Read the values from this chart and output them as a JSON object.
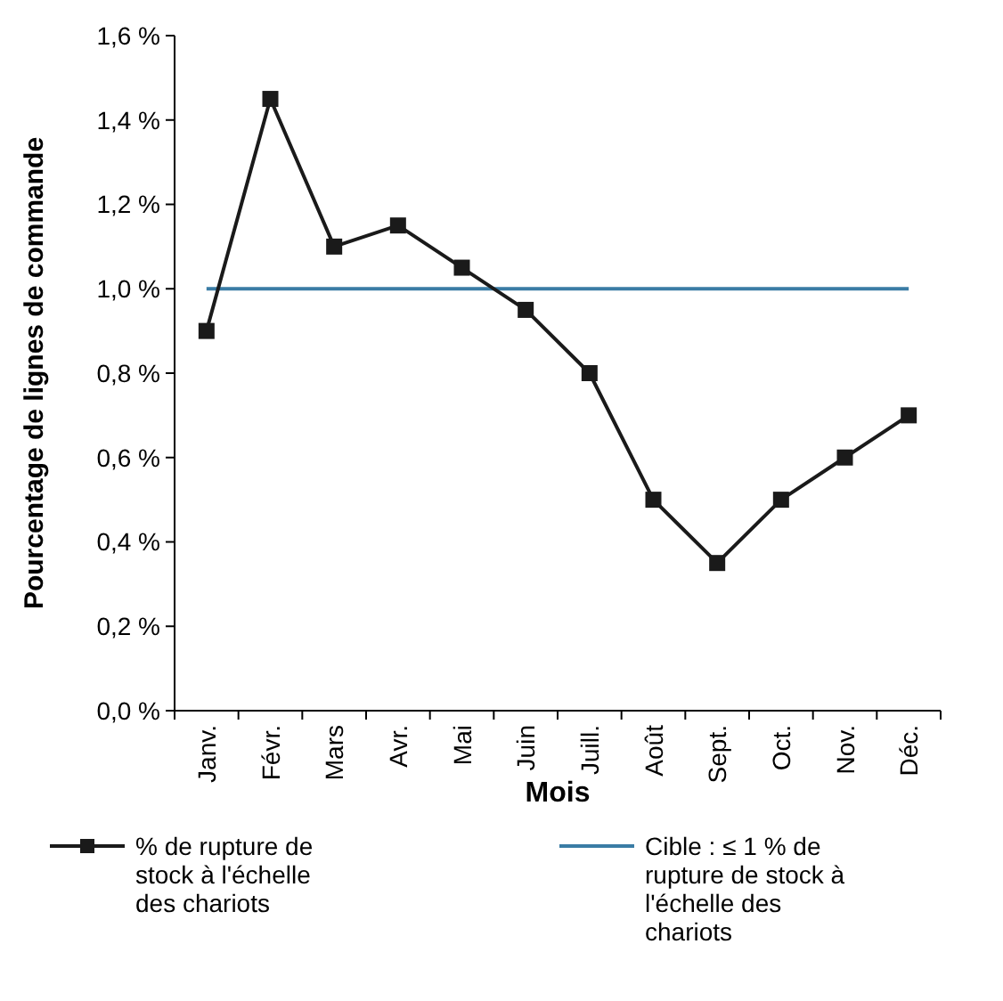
{
  "chart_data": {
    "type": "line",
    "xlabel": "Mois",
    "ylabel": "Pourcentage de lignes de commande",
    "categories": [
      "Janv.",
      "Févr.",
      "Mars",
      "Avr.",
      "Mai",
      "Juin",
      "Juill.",
      "Août",
      "Sept.",
      "Oct.",
      "Nov.",
      "Déc."
    ],
    "series": [
      {
        "name": "% de rupture de stock à l'échelle des chariots",
        "color": "#1a1a1a",
        "marker": "square",
        "values": [
          0.9,
          1.45,
          1.1,
          1.15,
          1.05,
          0.95,
          0.8,
          0.5,
          0.35,
          0.5,
          0.6,
          0.7
        ]
      },
      {
        "name": "Cible : ≤ 1 % de rupture de stock à l'échelle des chariots",
        "color": "#3a7ca5",
        "marker": "none",
        "values": [
          1,
          1,
          1,
          1,
          1,
          1,
          1,
          1,
          1,
          1,
          1,
          1
        ]
      }
    ],
    "ylim": [
      0,
      1.6
    ],
    "yticks": [
      {
        "value": 0,
        "label": "0,0 %"
      },
      {
        "value": 0.2,
        "label": "0,2 %"
      },
      {
        "value": 0.4,
        "label": "0,4 %"
      },
      {
        "value": 0.6,
        "label": "0,6 %"
      },
      {
        "value": 0.8,
        "label": "0,8 %"
      },
      {
        "value": 1,
        "label": "1,0 %"
      },
      {
        "value": 1.2,
        "label": "1,2 %"
      },
      {
        "value": 1.4,
        "label": "1,4 %"
      },
      {
        "value": 1.6,
        "label": "1,6 %"
      }
    ],
    "grid": false,
    "legend": "bottom"
  }
}
